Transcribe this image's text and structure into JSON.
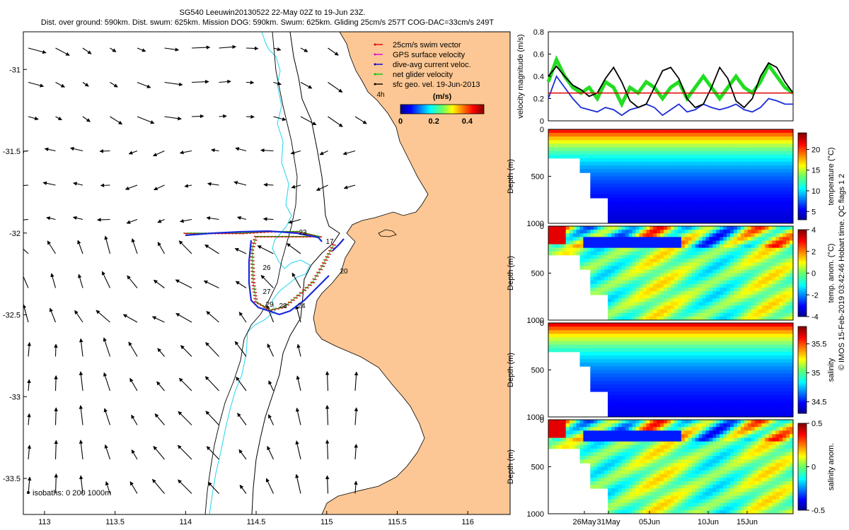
{
  "header": {
    "title_line1": "SG540 Leeuwin20130522 22-May 02Z to 19-Jun 23Z.",
    "title_line2": "Dist. over ground: 590km. Dist. swum: 625km. Mission DOG: 590km. Swum: 625km. Gliding 25cm/s 257T COG-DAC=33cm/s 249T"
  },
  "copyright": "© IMOS 15-Feb-2019 03:42:46 Hobart time. QC flags 1  2",
  "map": {
    "legend": [
      {
        "label": "25cm/s swim vector",
        "color": "#e00000"
      },
      {
        "label": "GPS surface velocity",
        "color": "#e000e0"
      },
      {
        "label": "dive-avg current veloc.",
        "color": "#0000d0"
      },
      {
        "label": "net glider velocity",
        "color": "#00cc00"
      },
      {
        "label": "sfc geo. vel. 19-Jun-2013",
        "color": "#000000"
      }
    ],
    "colorbar": {
      "title": "(m/s)",
      "ticks": [
        "0",
        "0.2",
        "0.4"
      ]
    },
    "isobaths_label": "isobaths: 0   200  1000m",
    "xticks": [
      "113",
      "113.5",
      "114",
      "114.5",
      "115",
      "115.5",
      "116"
    ],
    "yticks": [
      "-31",
      "-31.5",
      "-32",
      "-32.5",
      "-33",
      "-33.5"
    ],
    "day_labels": [
      "17",
      "20",
      "23",
      "24",
      "26",
      "27",
      "28",
      "29",
      "4h"
    ],
    "colors": {
      "land": "#fcc794",
      "track": "#d91515",
      "dac": "#1a2bd8",
      "isobath": "#23d3ee"
    }
  },
  "panels": {
    "velocity": {
      "ylabel": "velocity magnitude (m/s)",
      "yticks": [
        "0",
        "0.2",
        "0.4",
        "0.6",
        "0.8"
      ]
    },
    "temperature": {
      "cblabel": "temperature (°C)",
      "cbticks": [
        "5",
        "10",
        "15",
        "20"
      ]
    },
    "temp_anom": {
      "cblabel": "temp. anom. (°C)",
      "cbticks": [
        "-4",
        "-2",
        "0",
        "2",
        "4"
      ]
    },
    "salinity": {
      "cblabel": "salinity",
      "cbticks": [
        "34.5",
        "35",
        "35.5"
      ]
    },
    "sal_anom": {
      "cblabel": "salinity anom.",
      "cbticks": [
        "-0.5",
        "0",
        "0.5"
      ]
    },
    "depth_label": "Depth (m)",
    "depth_ticks": [
      "0",
      "500",
      "1000"
    ],
    "xticks": [
      "26May",
      "31May",
      "05Jun",
      "10Jun",
      "15Jun"
    ]
  },
  "chart_data": [
    {
      "type": "scatter",
      "title": "SG540 Leeuwin20130522 22-May 02Z to 19-Jun 23Z.",
      "xlabel": "",
      "ylabel": "",
      "xlim": [
        112.85,
        116.3
      ],
      "ylim": [
        -33.72,
        -30.77
      ],
      "series": [
        {
          "name": "25cm/s swim vector",
          "points": [
            [
              114.0,
              -32.0
            ],
            [
              114.2,
              -32.0
            ],
            [
              114.4,
              -32.0
            ],
            [
              114.6,
              -31.99
            ],
            [
              114.8,
              -31.99
            ],
            [
              114.95,
              -32.02
            ],
            [
              114.5,
              -32.02
            ],
            [
              114.47,
              -32.1
            ],
            [
              114.48,
              -32.3
            ],
            [
              114.5,
              -32.42
            ],
            [
              114.6,
              -32.47
            ],
            [
              114.7,
              -32.45
            ],
            [
              114.8,
              -32.38
            ],
            [
              114.9,
              -32.3
            ],
            [
              114.97,
              -32.2
            ],
            [
              115.05,
              -32.07
            ]
          ]
        }
      ]
    },
    {
      "type": "line",
      "ylabel": "velocity magnitude (m/s)",
      "x": [
        21,
        22,
        23,
        24,
        25,
        26,
        27,
        28,
        29,
        30,
        31,
        32,
        33,
        34,
        35,
        36,
        37,
        38,
        39,
        40,
        41,
        42,
        43,
        44,
        45,
        46,
        47,
        48,
        49,
        50,
        51
      ],
      "ylim": [
        0,
        0.8
      ],
      "series": [
        {
          "name": "net glider velocity",
          "values": [
            0.35,
            0.55,
            0.4,
            0.3,
            0.25,
            0.3,
            0.2,
            0.35,
            0.3,
            0.15,
            0.3,
            0.25,
            0.35,
            0.3,
            0.2,
            0.3,
            0.35,
            0.2,
            0.3,
            0.4,
            0.3,
            0.2,
            0.3,
            0.4,
            0.3,
            0.25,
            0.35,
            0.5,
            0.4,
            0.3,
            0.25
          ]
        },
        {
          "name": "dive-avg current veloc.",
          "values": [
            0.2,
            0.4,
            0.3,
            0.2,
            0.12,
            0.1,
            0.08,
            0.12,
            0.1,
            0.05,
            0.1,
            0.12,
            0.15,
            0.12,
            0.05,
            0.1,
            0.15,
            0.08,
            0.1,
            0.15,
            0.12,
            0.1,
            0.12,
            0.15,
            0.1,
            0.08,
            0.12,
            0.2,
            0.18,
            0.15,
            0.15
          ]
        },
        {
          "name": "sfc geo. vel.",
          "values": [
            0.4,
            0.49,
            0.4,
            0.32,
            0.28,
            0.22,
            0.25,
            0.38,
            0.48,
            0.35,
            0.18,
            0.12,
            0.15,
            0.3,
            0.45,
            0.48,
            0.38,
            0.2,
            0.12,
            0.15,
            0.3,
            0.48,
            0.38,
            0.18,
            0.12,
            0.2,
            0.4,
            0.52,
            0.48,
            0.35,
            0.25
          ]
        },
        {
          "name": "25cm/s swim vector",
          "values": [
            0.25,
            0.25,
            0.25,
            0.25,
            0.25,
            0.25,
            0.25,
            0.25,
            0.25,
            0.25,
            0.25,
            0.25,
            0.25,
            0.25,
            0.25,
            0.25,
            0.25,
            0.25,
            0.25,
            0.25,
            0.25,
            0.25,
            0.25,
            0.25,
            0.25,
            0.25,
            0.25,
            0.25,
            0.25,
            0.25,
            0.25
          ]
        }
      ]
    },
    {
      "type": "heatmap",
      "ylabel": "Depth (m)",
      "ylim": [
        1000,
        0
      ],
      "colorbar_label": "temperature (°C)",
      "clim": [
        3,
        24
      ],
      "surface": 22,
      "deep": 4
    },
    {
      "type": "heatmap",
      "ylabel": "Depth (m)",
      "ylim": [
        1000,
        0
      ],
      "colorbar_label": "temp. anom. (°C)",
      "clim": [
        -4,
        4
      ],
      "surface": 0,
      "deep": 0
    },
    {
      "type": "heatmap",
      "ylabel": "Depth (m)",
      "ylim": [
        1000,
        0
      ],
      "colorbar_label": "salinity",
      "clim": [
        34.3,
        35.8
      ],
      "surface": 35.7,
      "deep": 34.4
    },
    {
      "type": "heatmap",
      "ylabel": "Depth (m)",
      "ylim": [
        1000,
        0
      ],
      "colorbar_label": "salinity anom.",
      "clim": [
        -0.5,
        0.5
      ],
      "surface": 0,
      "deep": 0
    }
  ]
}
